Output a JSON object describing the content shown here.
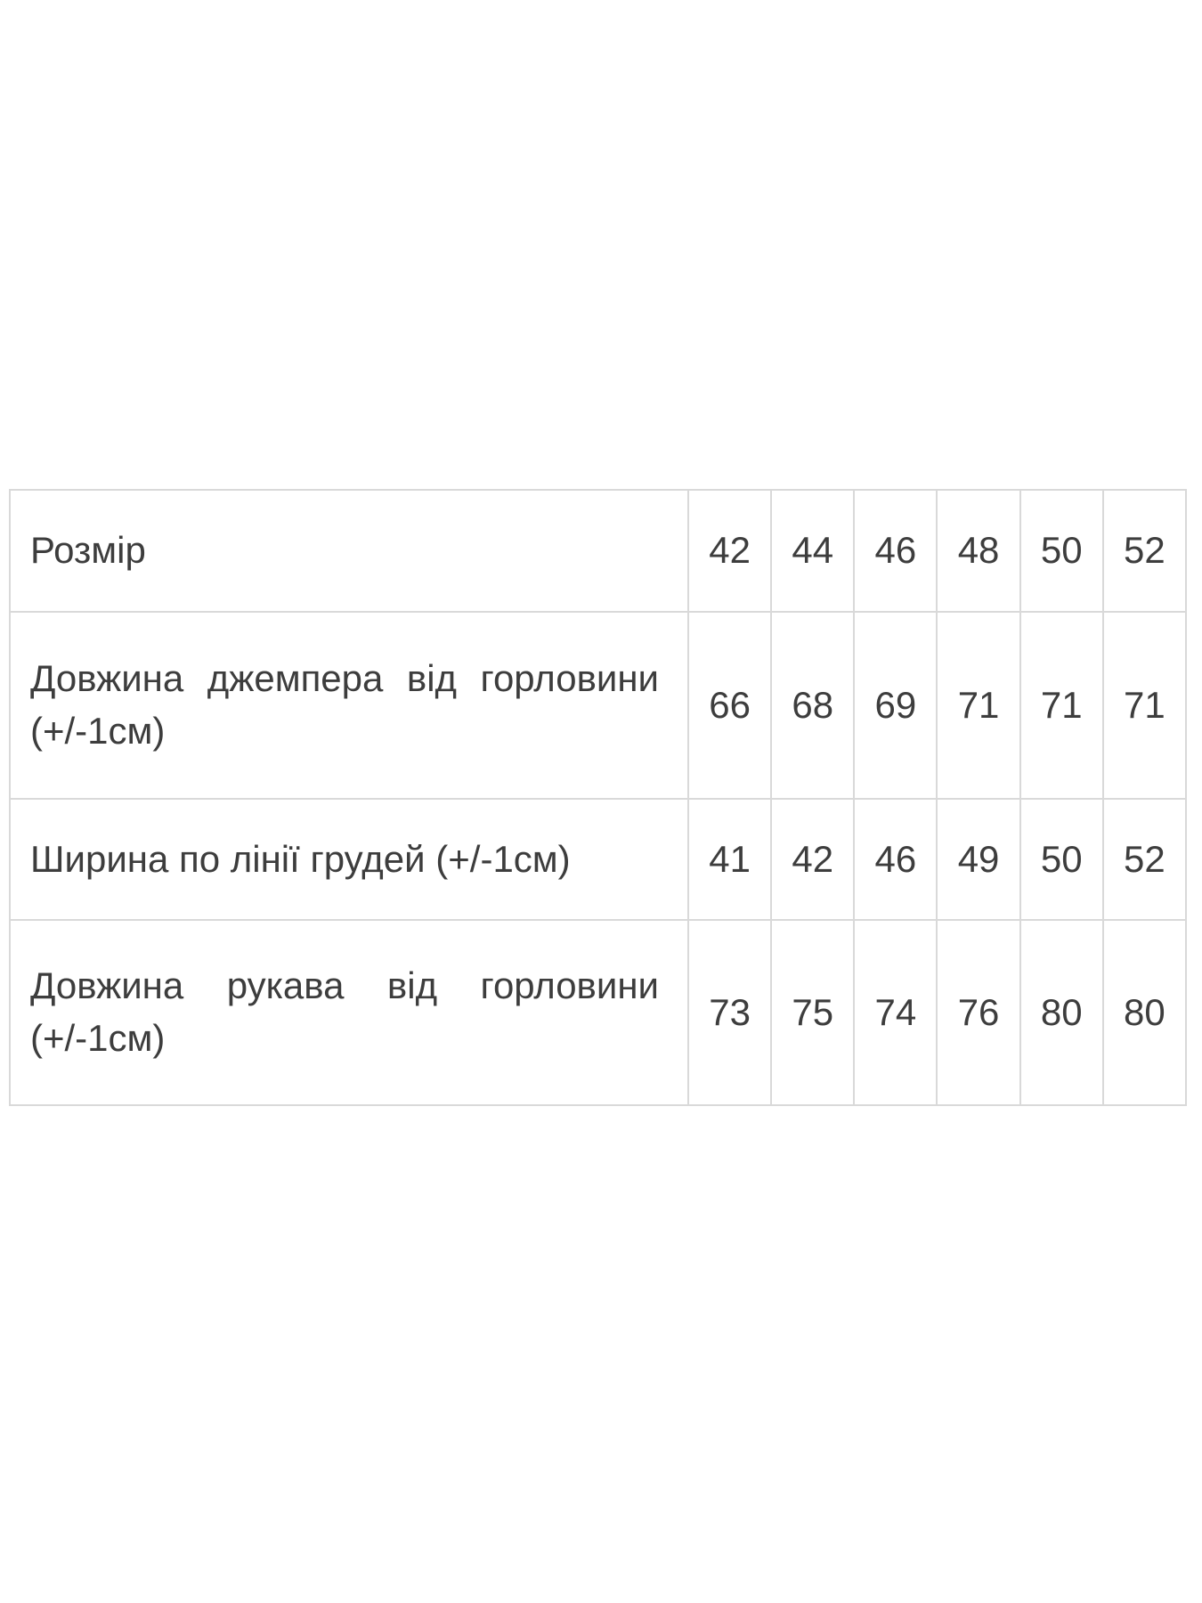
{
  "colors": {
    "table_border": "#d9d9d9",
    "text": "#3d3d3d",
    "background": "#ffffff"
  },
  "chart_data": {
    "type": "table",
    "rows": [
      {
        "label": "Розмір",
        "values": [
          "42",
          "44",
          "46",
          "48",
          "50",
          "52"
        ]
      },
      {
        "label": "Довжина джемпера від горловини (+/-1см)",
        "values": [
          "66",
          "68",
          "69",
          "71",
          "71",
          "71"
        ]
      },
      {
        "label": "Ширина по лінії грудей (+/-1см)",
        "values": [
          "41",
          "42",
          "46",
          "49",
          "50",
          "52"
        ]
      },
      {
        "label": "Довжина рукава від горловини (+/-1см)",
        "values": [
          "73",
          "75",
          "74",
          "76",
          "80",
          "80"
        ]
      }
    ]
  }
}
